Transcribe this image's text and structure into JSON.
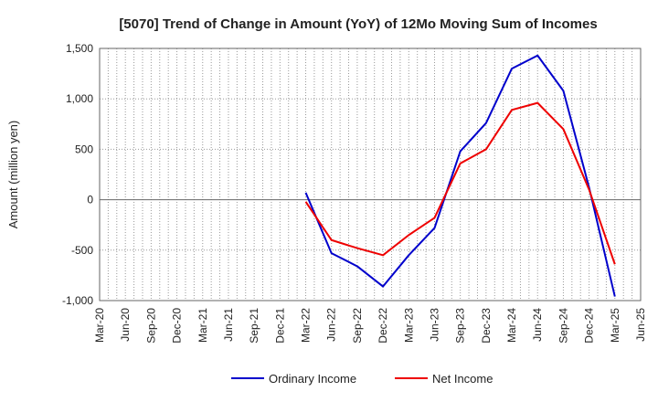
{
  "chart_data": {
    "type": "line",
    "title": "[5070]  Trend of Change in Amount (YoY) of 12Mo Moving Sum of Incomes",
    "xlabel": "",
    "ylabel": "Amount (million yen)",
    "ylim": [
      -1000,
      1500
    ],
    "yticks": [
      -1000,
      -500,
      0,
      500,
      1000,
      1500
    ],
    "ytick_labels": [
      "-1,000",
      "-500",
      "0",
      "500",
      "1,000",
      "1,500"
    ],
    "categories": [
      "Mar-20",
      "Jun-20",
      "Sep-20",
      "Dec-20",
      "Mar-21",
      "Jun-21",
      "Sep-21",
      "Dec-21",
      "Mar-22",
      "Jun-22",
      "Sep-22",
      "Dec-22",
      "Mar-23",
      "Jun-23",
      "Sep-23",
      "Dec-23",
      "Mar-24",
      "Jun-24",
      "Sep-24",
      "Dec-24",
      "Mar-25",
      "Jun-25"
    ],
    "grid": true,
    "legend_position": "bottom",
    "series": [
      {
        "name": "Ordinary Income",
        "color": "#0000cc",
        "values": [
          null,
          null,
          null,
          null,
          null,
          null,
          null,
          null,
          70,
          -530,
          -660,
          -860,
          -550,
          -280,
          480,
          760,
          1300,
          1430,
          1080,
          120,
          -960,
          null
        ]
      },
      {
        "name": "Net Income",
        "color": "#ee0000",
        "values": [
          null,
          null,
          null,
          null,
          null,
          null,
          null,
          null,
          -20,
          -400,
          -480,
          -550,
          -350,
          -180,
          360,
          500,
          890,
          960,
          700,
          100,
          -640,
          null
        ]
      }
    ]
  }
}
